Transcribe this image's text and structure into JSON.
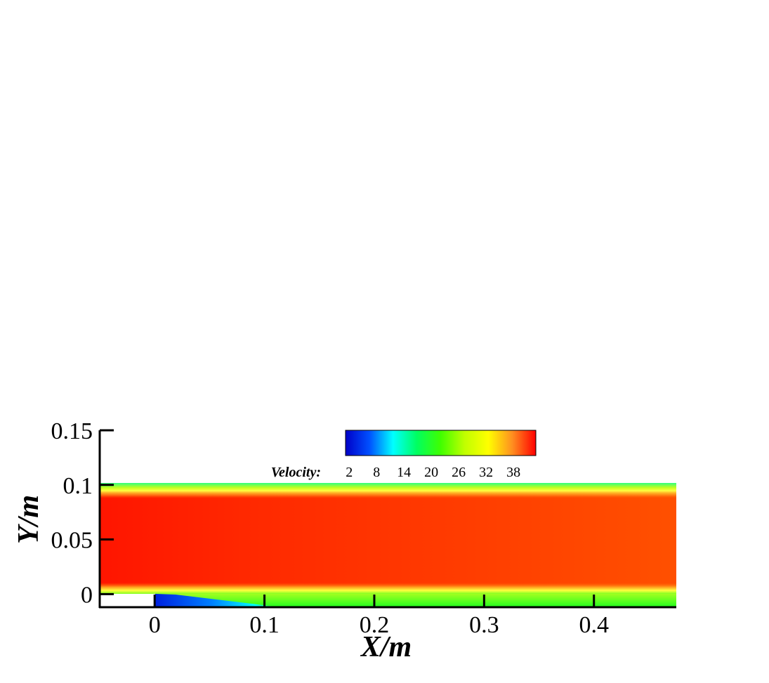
{
  "chart_data": {
    "type": "contour",
    "xlabel": "X/m",
    "ylabel": "Y/m",
    "xlim": [
      -0.05,
      0.475
    ],
    "ylim": [
      -0.012,
      0.15
    ],
    "xticks": [
      0,
      0.1,
      0.2,
      0.3,
      0.4
    ],
    "yticks": [
      0,
      0.05,
      0.1,
      0.15
    ],
    "colorbar": {
      "label": "Velocity:",
      "lim": [
        1.2,
        42.9
      ],
      "ticks": [
        2,
        8,
        14,
        20,
        26,
        32,
        38
      ],
      "colors": [
        "#0000c8",
        "#0050ff",
        "#00ffff",
        "#00ff60",
        "#40ff00",
        "#c0ff00",
        "#ffff00",
        "#ff9020",
        "#ff0000"
      ]
    }
  }
}
